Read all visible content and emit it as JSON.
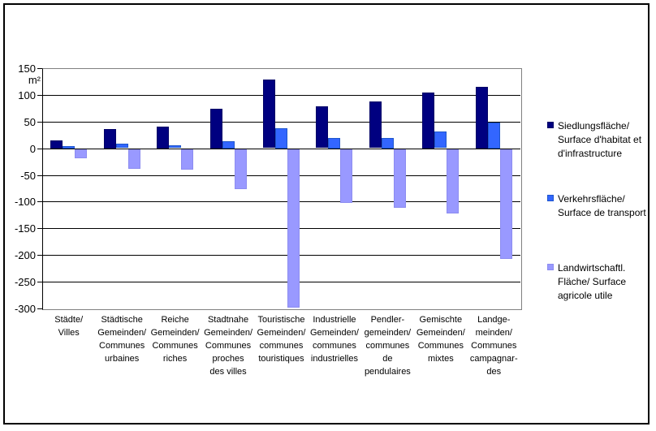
{
  "chart_data": {
    "type": "bar",
    "title": "",
    "unit_label": "m²",
    "ylim": [
      -300,
      150
    ],
    "ytick_step": 50,
    "yticks": [
      150,
      100,
      50,
      0,
      -50,
      -100,
      -150,
      -200,
      -250,
      -300
    ],
    "grid": "horizontal",
    "legend_position": "right",
    "categories": [
      "Städte/\nVilles",
      "Städtische\nGemeinden/\nCommunes\nurbaines",
      "Reiche\nGemeinden/\nCommunes\nriches",
      "Stadtnahe\nGemeinden/\nCommunes\nproches\ndes villes",
      "Touristische\nGemeinden/\ncommunes\ntouristiques",
      "Industrielle\nGemeinden/\ncommunes\nindustrielles",
      "Pendler-\ngemeinden/\ncommunes\nde\npendulaires",
      "Gemischte\nGemeinden/\nCommunes\nmixtes",
      "Landge-\nmeinden/\nCommunes\ncampagnar-\ndes"
    ],
    "series": [
      {
        "key": "siedlungsflaeche",
        "label": "Siedlungsfläche/\nSurface d'habitat et\nd'infrastructure",
        "color": "#000080",
        "border_color": "#000066",
        "values": [
          15,
          36,
          41,
          74,
          128,
          78,
          87,
          105,
          115
        ]
      },
      {
        "key": "verkehrsflaeche",
        "label": "Verkehrsfläche/\nSurface de transport",
        "color": "#3366ff",
        "border_color": "#1e56cc",
        "values": [
          4,
          8,
          5,
          13,
          38,
          20,
          20,
          31,
          48
        ]
      },
      {
        "key": "landwirtschaftliche-flaeche",
        "label": "Landwirtschaftl.\nFläche/ Surface\nagricole utile",
        "color": "#9999ff",
        "border_color": "#8c8cf0",
        "values": [
          -16,
          -36,
          -38,
          -75,
          -297,
          -100,
          -109,
          -120,
          -205
        ]
      }
    ]
  }
}
